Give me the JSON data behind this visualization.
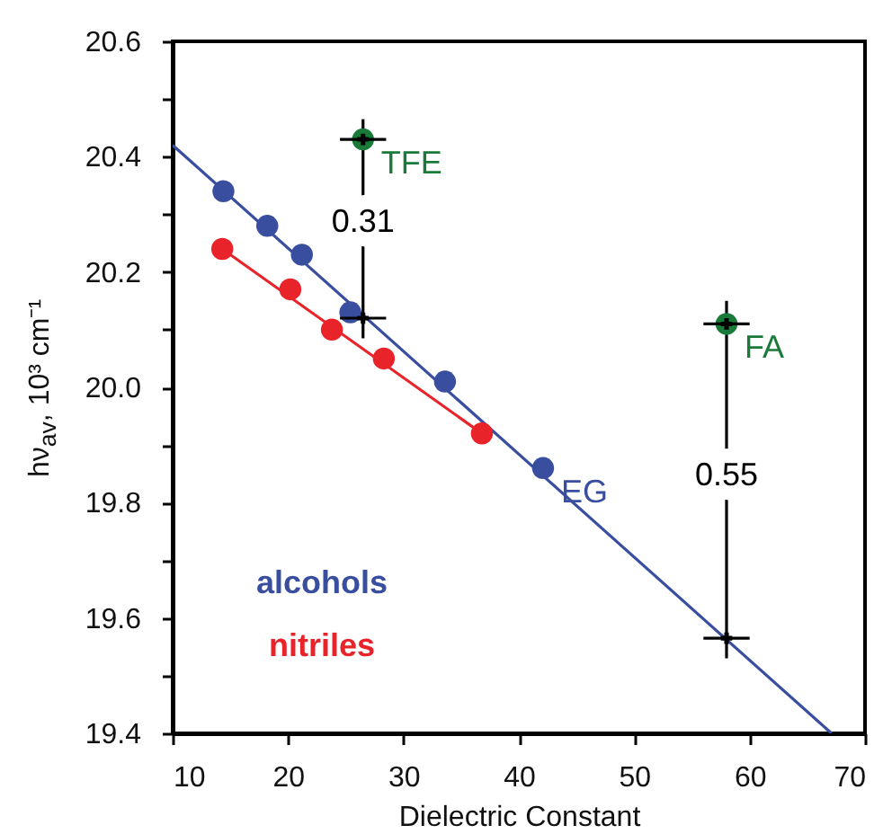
{
  "chart_data": {
    "type": "scatter",
    "xlabel": "Dielectric Constant",
    "ylabel": "hν$_{av}$, 10³ cm⁻¹",
    "xlim": [
      10,
      70
    ],
    "ylim": [
      19.4,
      20.6
    ],
    "xticks": [
      10,
      20,
      30,
      40,
      50,
      60,
      70
    ],
    "yticks": [
      {
        "value": 19.4,
        "label": "19.4"
      },
      {
        "value": 19.5,
        "label": null
      },
      {
        "value": 19.6,
        "label": "19.6"
      },
      {
        "value": 19.7,
        "label": null
      },
      {
        "value": 19.8,
        "label": "19.8"
      },
      {
        "value": 19.9,
        "label": null
      },
      {
        "value": 20.0,
        "label": "20.0"
      },
      {
        "value": 20.1,
        "label": null
      },
      {
        "value": 20.2,
        "label": "20.2"
      },
      {
        "value": 20.3,
        "label": null
      },
      {
        "value": 20.4,
        "label": "20.4"
      },
      {
        "value": 20.5,
        "label": null
      },
      {
        "value": 20.6,
        "label": "20.6"
      }
    ],
    "legend": "bottom left",
    "series": [
      {
        "type": "line",
        "color": "#3a4ea0",
        "x": [
          10,
          67.1
        ],
        "values": [
          20.42,
          19.4
        ]
      },
      {
        "type": "line",
        "color": "#e8232a",
        "x": [
          14.3,
          36.8
        ],
        "values": [
          20.24,
          19.92
        ]
      },
      {
        "type": "line",
        "color": "#000000",
        "x": [
          26.5,
          26.5
        ],
        "values": [
          20.465,
          20.085
        ]
      },
      {
        "type": "line",
        "color": "#000000",
        "x": [
          58,
          58
        ],
        "values": [
          20.15,
          19.53
        ]
      },
      {
        "name": "alcohols",
        "marker": "circle",
        "color": "#3a4ea0",
        "x": [
          14.4,
          18.2,
          21.2,
          25.4,
          33.6,
          42.1
        ],
        "values": [
          20.34,
          20.28,
          20.23,
          20.13,
          20.01,
          19.86
        ]
      },
      {
        "name": "nitriles",
        "marker": "circle",
        "color": "#e8232a",
        "x": [
          14.3,
          20.2,
          23.8,
          28.3,
          36.8
        ],
        "values": [
          20.24,
          20.17,
          20.1,
          20.05,
          19.92
        ]
      },
      {
        "marker": "circle",
        "color": "#1a7a3a",
        "x": [
          26.5,
          58
        ],
        "values": [
          20.43,
          20.11
        ]
      },
      {
        "marker": "cross",
        "color": "#000000",
        "x": [
          26.5,
          26.5,
          58,
          58
        ],
        "values": [
          20.43,
          20.12,
          20.11,
          19.565
        ],
        "xerrors": [
          2,
          2,
          2,
          2
        ]
      }
    ],
    "annotations": [
      {
        "text": "TFE",
        "x": 26.5,
        "y": 20.43
      },
      {
        "text": "FA",
        "x": 58,
        "y": 20.11
      },
      {
        "text": "EG",
        "x": 42.1,
        "y": 19.86
      },
      {
        "text": "0.31",
        "x": 26.5,
        "y": 20.285
      },
      {
        "text": "0.55",
        "x": 58,
        "y": 19.845
      }
    ]
  }
}
